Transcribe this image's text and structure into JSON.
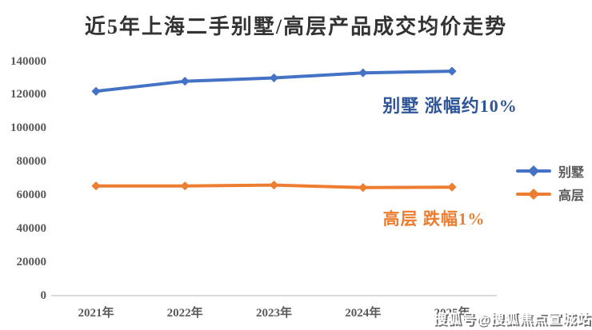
{
  "title": "近5年上海二手别墅/高层产品成交均价走势",
  "watermark": "搜狐号@搜狐焦点宣城站",
  "annotations": {
    "villa": "别墅 涨幅约10%",
    "highrise": "高层 跌幅1%"
  },
  "legend": {
    "items": [
      {
        "label": "别墅",
        "color": "#4472C4"
      },
      {
        "label": "高层",
        "color": "#ED7D31"
      }
    ]
  },
  "colors": {
    "villa_line": "#4472C4",
    "highrise_line": "#ED7D31",
    "villa_annotation": "#2E5597",
    "highrise_annotation": "#ED7D31",
    "axis_text": "#595959",
    "axis_line": "#D9D9D9",
    "title_text": "#333333",
    "watermark_text": "#FFFFFF"
  },
  "chart_data": {
    "type": "line",
    "title": "近5年上海二手别墅/高层产品成交均价走势",
    "categories": [
      "2021年",
      "2022年",
      "2023年",
      "2024年",
      "2025年"
    ],
    "series": [
      {
        "name": "别墅",
        "color": "#4472C4",
        "values": [
          122000,
          128000,
          130000,
          133000,
          134000
        ],
        "annotation": "别墅 涨幅约10%"
      },
      {
        "name": "高层",
        "color": "#ED7D31",
        "values": [
          65500,
          65500,
          66000,
          64500,
          64800
        ],
        "annotation": "高层 跌幅1%"
      }
    ],
    "xlabel": "",
    "ylabel": "",
    "ylim": [
      0,
      140000
    ],
    "yticks": [
      0,
      20000,
      40000,
      60000,
      80000,
      100000,
      120000,
      140000
    ],
    "grid": false,
    "legend_position": "right",
    "marker": "diamond"
  }
}
